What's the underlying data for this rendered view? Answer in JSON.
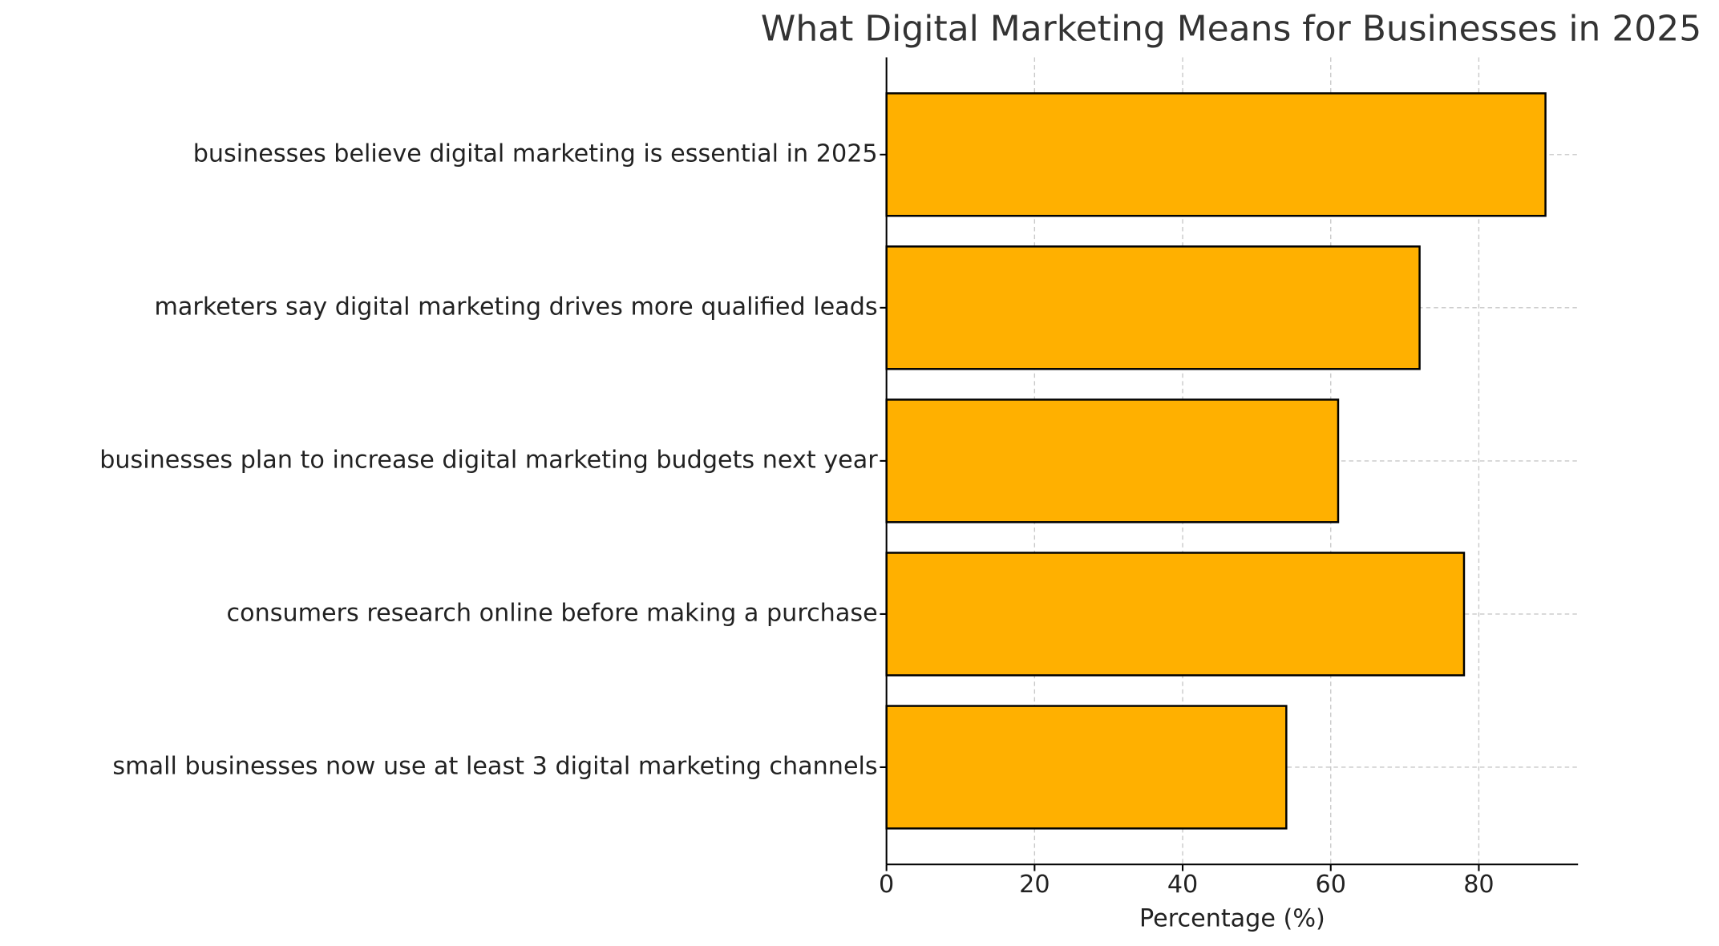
{
  "chart_data": {
    "type": "bar",
    "orientation": "horizontal",
    "title": "What Digital Marketing Means for Businesses in 2025",
    "x_label": "Percentage (%)",
    "categories": [
      "businesses believe digital marketing is essential in 2025",
      "marketers say digital marketing drives more qualified leads",
      "businesses plan to increase digital marketing budgets next year",
      "consumers research online before making a purchase",
      "small businesses now use at least 3 digital marketing channels"
    ],
    "values": [
      89,
      72,
      61,
      78,
      54
    ],
    "color": "#ffb000",
    "edge_color": "#000000",
    "xlim": [
      0,
      93.4
    ],
    "xticks": [
      0,
      20,
      40,
      60,
      80
    ],
    "grid": true
  }
}
